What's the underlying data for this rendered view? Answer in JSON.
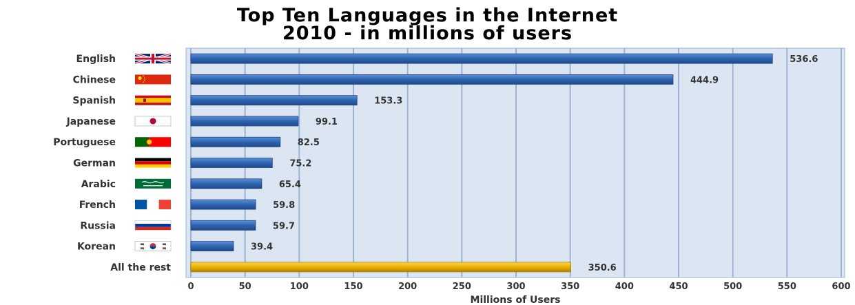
{
  "chart_data": {
    "type": "bar",
    "orientation": "horizontal",
    "title": "Top Ten Languages in the Internet",
    "subtitle": "2010 - in millions of users",
    "xlabel": "Millions of Users",
    "ylabel": "",
    "xlim": [
      0,
      600
    ],
    "xticks": [
      0,
      50,
      100,
      150,
      200,
      250,
      300,
      350,
      400,
      450,
      500,
      550,
      600
    ],
    "grid": true,
    "categories": [
      "English",
      "Chinese",
      "Spanish",
      "Japanese",
      "Portuguese",
      "German",
      "Arabic",
      "French",
      "Russia",
      "Korean",
      "All the rest"
    ],
    "values": [
      536.6,
      444.9,
      153.3,
      99.1,
      82.5,
      75.2,
      65.4,
      59.8,
      59.7,
      39.4,
      350.6
    ],
    "value_labels": [
      "536.6",
      "444.9",
      "153.3",
      "99.1",
      "82.5",
      "75.2",
      "65.4",
      "59.8",
      "59.7",
      "39.4",
      "350.6"
    ],
    "flags": [
      "uk-flag-icon",
      "china-flag-icon",
      "spain-flag-icon",
      "japan-flag-icon",
      "portugal-flag-icon",
      "germany-flag-icon",
      "saudi-arabia-flag-icon",
      "france-flag-icon",
      "russia-flag-icon",
      "south-korea-flag-icon",
      ""
    ],
    "colors": {
      "bar": "#2f63b0",
      "highlight_bar": "#e8b000",
      "plot_background": "#dce6f2",
      "grid": "#9ab3d5"
    }
  }
}
